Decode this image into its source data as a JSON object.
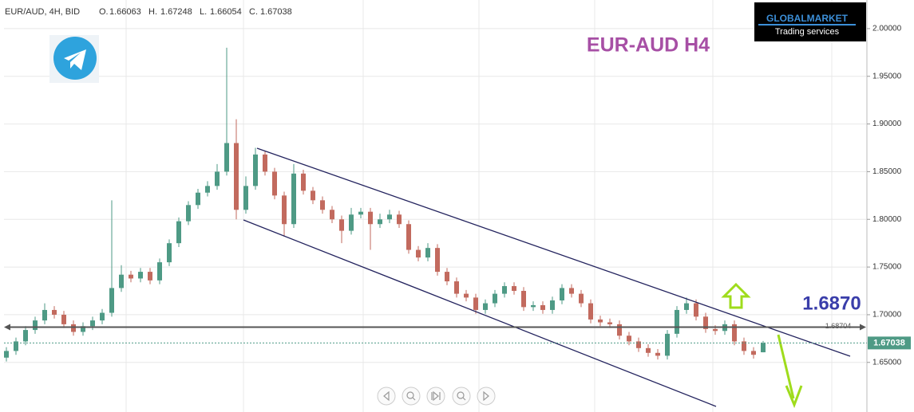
{
  "chart_data": {
    "type": "candlestick",
    "header": "EUR/AUD, 4H, BID",
    "ohlc_prefixes": [
      "O.",
      "H.",
      "L.",
      "C."
    ],
    "title": "EUR-AUD H4",
    "annotation": "1.6870",
    "logo": {
      "name": "GLOBALMARKET",
      "tagline": "Trading services"
    },
    "hline": 1.68704,
    "up_color": "#4e9a85",
    "down_color": "#c26a5e",
    "ylim": [
      1.598,
      2.03
    ],
    "yticks": [
      {
        "value": 1.65,
        "label": "1.65000"
      },
      {
        "value": 1.7,
        "label": "1.70000"
      },
      {
        "value": 1.75,
        "label": "1.75000"
      },
      {
        "value": 1.8,
        "label": "1.80000"
      },
      {
        "value": 1.85,
        "label": "1.85000"
      },
      {
        "value": 1.9,
        "label": "1.90000"
      },
      {
        "value": 1.95,
        "label": "1.95000"
      },
      {
        "value": 2.0,
        "label": "2.00000"
      }
    ],
    "grid": true,
    "open": [
      1.655,
      1.662,
      1.672,
      1.684,
      1.694,
      1.705,
      1.7,
      1.69,
      1.682,
      1.688,
      1.694,
      1.702,
      1.728,
      1.742,
      1.738,
      1.745,
      1.736,
      1.755,
      1.775,
      1.798,
      1.815,
      1.828,
      1.835,
      1.85,
      1.88,
      1.81,
      1.835,
      1.868,
      1.85,
      1.825,
      1.795,
      1.848,
      1.83,
      1.82,
      1.81,
      1.8,
      1.788,
      1.805,
      1.808,
      1.795,
      1.8,
      1.805,
      1.795,
      1.768,
      1.76,
      1.77,
      1.745,
      1.735,
      1.722,
      1.718,
      1.705,
      1.712,
      1.722,
      1.73,
      1.725,
      1.708,
      1.71,
      1.705,
      1.715,
      1.728,
      1.722,
      1.712,
      1.695,
      1.692,
      1.69,
      1.678,
      1.672,
      1.665,
      1.66,
      1.657,
      1.68,
      1.705,
      1.712,
      1.698,
      1.685,
      1.683,
      1.69,
      1.672,
      1.662,
      1.66063
    ],
    "high": [
      1.666,
      1.676,
      1.688,
      1.698,
      1.712,
      1.709,
      1.704,
      1.694,
      1.692,
      1.698,
      1.706,
      1.82,
      1.752,
      1.746,
      1.749,
      1.749,
      1.759,
      1.779,
      1.802,
      1.819,
      1.832,
      1.84,
      1.858,
      1.98,
      1.905,
      1.845,
      1.875,
      1.872,
      1.854,
      1.829,
      1.858,
      1.852,
      1.834,
      1.824,
      1.814,
      1.804,
      1.812,
      1.812,
      1.812,
      1.806,
      1.81,
      1.809,
      1.799,
      1.772,
      1.775,
      1.774,
      1.749,
      1.739,
      1.726,
      1.722,
      1.716,
      1.726,
      1.734,
      1.734,
      1.729,
      1.714,
      1.714,
      1.719,
      1.732,
      1.732,
      1.726,
      1.716,
      1.699,
      1.696,
      1.694,
      1.682,
      1.676,
      1.669,
      1.664,
      1.684,
      1.709,
      1.718,
      1.716,
      1.702,
      1.689,
      1.694,
      1.694,
      1.676,
      1.666,
      1.67248
    ],
    "low": [
      1.651,
      1.658,
      1.668,
      1.68,
      1.69,
      1.696,
      1.686,
      1.678,
      1.678,
      1.684,
      1.69,
      1.698,
      1.724,
      1.734,
      1.734,
      1.732,
      1.732,
      1.751,
      1.771,
      1.794,
      1.811,
      1.824,
      1.831,
      1.846,
      1.8,
      1.806,
      1.831,
      1.846,
      1.821,
      1.782,
      1.791,
      1.826,
      1.816,
      1.806,
      1.796,
      1.775,
      1.784,
      1.801,
      1.768,
      1.791,
      1.796,
      1.791,
      1.764,
      1.756,
      1.756,
      1.741,
      1.731,
      1.718,
      1.714,
      1.701,
      1.701,
      1.708,
      1.718,
      1.721,
      1.704,
      1.704,
      1.701,
      1.701,
      1.711,
      1.718,
      1.708,
      1.691,
      1.688,
      1.686,
      1.674,
      1.668,
      1.661,
      1.656,
      1.653,
      1.653,
      1.676,
      1.701,
      1.694,
      1.681,
      1.679,
      1.679,
      1.668,
      1.658,
      1.654,
      1.66054
    ],
    "close": [
      1.662,
      1.672,
      1.684,
      1.694,
      1.705,
      1.7,
      1.69,
      1.682,
      1.688,
      1.694,
      1.702,
      1.728,
      1.742,
      1.738,
      1.745,
      1.736,
      1.755,
      1.775,
      1.798,
      1.815,
      1.828,
      1.835,
      1.85,
      1.88,
      1.81,
      1.835,
      1.868,
      1.85,
      1.825,
      1.795,
      1.848,
      1.83,
      1.82,
      1.81,
      1.8,
      1.788,
      1.805,
      1.808,
      1.795,
      1.8,
      1.805,
      1.795,
      1.768,
      1.76,
      1.77,
      1.745,
      1.735,
      1.722,
      1.718,
      1.705,
      1.712,
      1.722,
      1.73,
      1.725,
      1.708,
      1.71,
      1.705,
      1.715,
      1.728,
      1.722,
      1.712,
      1.695,
      1.692,
      1.69,
      1.678,
      1.672,
      1.665,
      1.66,
      1.657,
      1.68,
      1.705,
      1.712,
      1.698,
      1.685,
      1.683,
      1.69,
      1.672,
      1.662,
      1.658,
      1.67038
    ]
  }
}
